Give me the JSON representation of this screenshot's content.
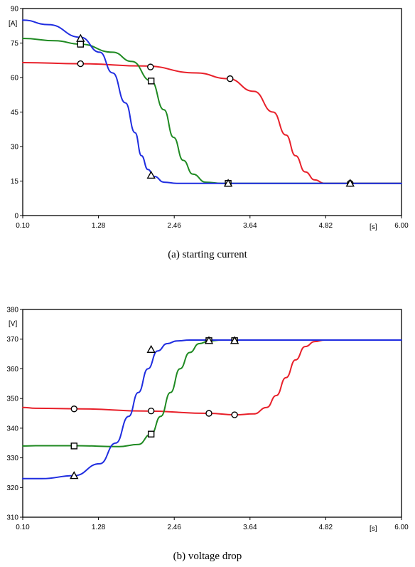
{
  "colors": {
    "red": "#e8202a",
    "green": "#1f8a22",
    "blue": "#1f2de0",
    "axis": "#000000"
  },
  "chart_data": [
    {
      "type": "line",
      "caption": "(a)  starting  current",
      "ylabel": "[A]",
      "xlabel": "[s]",
      "xlim": [
        0.1,
        6.0
      ],
      "ylim": [
        0,
        90
      ],
      "x_ticks": [
        "0.10",
        "1.28",
        "2.46",
        "3.64",
        "4.82",
        "6.00"
      ],
      "x_tick_values": [
        0.1,
        1.28,
        2.46,
        3.64,
        4.82,
        6.0
      ],
      "y_ticks": [
        "0",
        "15",
        "30",
        "45",
        "60",
        "75",
        "90"
      ],
      "y_tick_values": [
        0,
        15,
        30,
        45,
        60,
        75,
        90
      ],
      "grid": false,
      "series": [
        {
          "color": "red",
          "marker": "circle",
          "x": [
            0.1,
            1.0,
            2.0,
            2.8,
            3.3,
            3.7,
            4.0,
            4.2,
            4.35,
            4.5,
            4.65,
            4.8,
            5.0,
            6.0
          ],
          "y": [
            66.5,
            66,
            65,
            62,
            59.5,
            54,
            45,
            35,
            26,
            19,
            15.5,
            14,
            14,
            14
          ],
          "marker_points": [
            [
              1.0,
              66
            ],
            [
              2.09,
              64.6
            ],
            [
              3.33,
              59.5
            ],
            [
              5.2,
              14
            ]
          ]
        },
        {
          "color": "green",
          "marker": "square",
          "x": [
            0.1,
            0.6,
            1.0,
            1.5,
            1.8,
            2.1,
            2.3,
            2.45,
            2.6,
            2.75,
            2.95,
            3.2,
            6.0
          ],
          "y": [
            77,
            76,
            74.5,
            71,
            67,
            58.5,
            46,
            34,
            24,
            18,
            14.5,
            14,
            14
          ],
          "marker_points": [
            [
              1.0,
              74.5
            ],
            [
              2.1,
              58.5
            ],
            [
              3.3,
              14
            ]
          ]
        },
        {
          "color": "blue",
          "marker": "triangle",
          "x": [
            0.1,
            0.5,
            1.0,
            1.3,
            1.5,
            1.7,
            1.85,
            1.95,
            2.05,
            2.15,
            2.3,
            2.5,
            6.0
          ],
          "y": [
            85,
            83,
            77.5,
            71,
            62,
            49,
            36,
            26,
            20,
            17,
            14.5,
            14,
            14
          ],
          "marker_points": [
            [
              1.0,
              77
            ],
            [
              2.1,
              17.5
            ],
            [
              3.3,
              14
            ],
            [
              5.2,
              14
            ]
          ]
        }
      ]
    },
    {
      "type": "line",
      "caption": "(b)  voltage  drop",
      "ylabel": "[V]",
      "xlabel": "[s]",
      "xlim": [
        0.1,
        6.0
      ],
      "ylim": [
        310,
        380
      ],
      "x_ticks": [
        "0.10",
        "1.28",
        "2.46",
        "3.64",
        "4.82",
        "6.00"
      ],
      "x_tick_values": [
        0.1,
        1.28,
        2.46,
        3.64,
        4.82,
        6.0
      ],
      "y_ticks": [
        "310",
        "320",
        "330",
        "340",
        "350",
        "360",
        "370",
        "380"
      ],
      "y_tick_values": [
        310,
        320,
        330,
        340,
        350,
        360,
        370,
        380
      ],
      "grid": false,
      "series": [
        {
          "color": "red",
          "marker": "circle",
          "x": [
            0.1,
            0.3,
            1.0,
            2.0,
            3.0,
            3.4,
            3.7,
            3.9,
            4.05,
            4.2,
            4.35,
            4.5,
            4.65,
            4.8,
            6.0
          ],
          "y": [
            347,
            346.7,
            346.5,
            345.8,
            345,
            344.5,
            344.8,
            347,
            351,
            357,
            363,
            367.5,
            369.2,
            369.7,
            369.7
          ],
          "marker_points": [
            [
              0.9,
              346.5
            ],
            [
              2.1,
              345.8
            ],
            [
              3.0,
              345
            ],
            [
              3.4,
              344.5
            ]
          ]
        },
        {
          "color": "green",
          "marker": "square",
          "x": [
            0.1,
            0.3,
            0.9,
            1.6,
            1.9,
            2.1,
            2.25,
            2.4,
            2.55,
            2.7,
            2.85,
            3.0,
            3.2,
            6.0
          ],
          "y": [
            334,
            334.1,
            334.1,
            333.8,
            334.5,
            338,
            344,
            352,
            360,
            365.5,
            368.5,
            369.4,
            369.7,
            369.7
          ],
          "marker_points": [
            [
              0.9,
              334
            ],
            [
              2.1,
              338
            ],
            [
              3.0,
              369.5
            ],
            [
              3.4,
              369.5
            ]
          ]
        },
        {
          "color": "blue",
          "marker": "triangle",
          "x": [
            0.1,
            0.4,
            0.9,
            1.3,
            1.55,
            1.75,
            1.9,
            2.05,
            2.2,
            2.35,
            2.5,
            2.7,
            3.0,
            6.0
          ],
          "y": [
            323,
            323,
            324,
            328,
            335,
            344,
            352,
            360,
            366,
            368.5,
            369.4,
            369.7,
            369.7,
            369.7
          ],
          "marker_points": [
            [
              0.9,
              324
            ],
            [
              2.1,
              366.5
            ],
            [
              3.0,
              369.5
            ],
            [
              3.4,
              369.5
            ]
          ]
        }
      ]
    }
  ]
}
